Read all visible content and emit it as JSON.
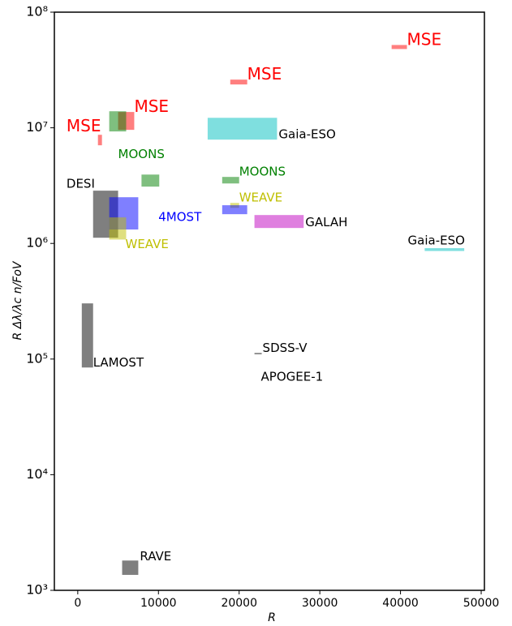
{
  "chart_data": {
    "type": "rectangles",
    "xlabel": "R",
    "ylabel": "R Δλ/λc n/FoV",
    "xlim": [
      -2900,
      50400
    ],
    "ylim": [
      1000,
      100000000
    ],
    "ylog": true,
    "xticks": [
      0,
      10000,
      20000,
      30000,
      40000,
      50000
    ],
    "yticks": [
      {
        "value": 1000,
        "label": "10³"
      },
      {
        "value": 10000,
        "label": "10⁴"
      },
      {
        "value": 100000,
        "label": "10⁵"
      },
      {
        "value": 1000000,
        "label": "10⁶"
      },
      {
        "value": 10000000,
        "label": "10⁷"
      },
      {
        "value": 100000000,
        "label": "10⁸"
      }
    ],
    "alpha": 0.5,
    "rects": [
      {
        "x": [
          38900,
          40800
        ],
        "y": [
          48000000,
          52000000
        ],
        "color": "#ff0000"
      },
      {
        "x": [
          18900,
          21000
        ],
        "y": [
          23700000,
          26100000
        ],
        "color": "#ff0000"
      },
      {
        "x": [
          5000,
          7000
        ],
        "y": [
          9600000,
          13700000
        ],
        "color": "#ff0000"
      },
      {
        "x": [
          2500,
          3000
        ],
        "y": [
          7060000,
          8700000
        ],
        "color": "#ff0000"
      },
      {
        "x": [
          3900,
          6000
        ],
        "y": [
          9300000,
          13900000
        ],
        "color": "#008000"
      },
      {
        "x": [
          7900,
          10100
        ],
        "y": [
          3100000,
          3940000
        ],
        "color": "#008000"
      },
      {
        "x": [
          17900,
          20000
        ],
        "y": [
          3300000,
          3760000
        ],
        "color": "#008000"
      },
      {
        "x": [
          16100,
          24700
        ],
        "y": [
          7900000,
          12200000
        ],
        "color": "#00bfbf"
      },
      {
        "x": [
          43000,
          47900
        ],
        "y": [
          860000,
          910000
        ],
        "color": "#00bfbf"
      },
      {
        "x": [
          1900,
          5000
        ],
        "y": [
          1120000,
          2860000
        ],
        "color": "#000000"
      },
      {
        "x": [
          3900,
          7500
        ],
        "y": [
          1320000,
          2510000
        ],
        "color": "#0000ff"
      },
      {
        "x": [
          3900,
          6000
        ],
        "y": [
          1080000,
          1680000
        ],
        "color": "#bfbf00"
      },
      {
        "x": [
          18900,
          20000
        ],
        "y": [
          2030000,
          2240000
        ],
        "color": "#bfbf00"
      },
      {
        "x": [
          17900,
          21000
        ],
        "y": [
          1790000,
          2140000
        ],
        "color": "#0000ff"
      },
      {
        "x": [
          21900,
          28000
        ],
        "y": [
          1360000,
          1760000
        ],
        "color": "#bf00bf"
      },
      {
        "x": [
          500,
          1900
        ],
        "y": [
          84500,
          303000
        ],
        "color": "#000000"
      },
      {
        "x": [
          21900,
          22800
        ],
        "y": [
          110000,
          113000
        ],
        "color": "#000000"
      },
      {
        "x": [
          5500,
          7500
        ],
        "y": [
          1360,
          1810
        ],
        "color": "#000000"
      }
    ],
    "annotations": [
      {
        "text": "MSE",
        "x": 40800,
        "y": 56700000,
        "color": "#ff0000",
        "fontsize": 20
      },
      {
        "text": "MSE",
        "x": 21000,
        "y": 28700000,
        "color": "#ff0000",
        "fontsize": 20
      },
      {
        "text": "MSE",
        "x": 7000,
        "y": 15000000,
        "color": "#ff0000",
        "fontsize": 20
      },
      {
        "text": "MSE",
        "x": -1400,
        "y": 10200000,
        "color": "#ff0000",
        "fontsize": 20
      },
      {
        "text": "MOONS",
        "x": 5000,
        "y": 5900000,
        "color": "#008000",
        "fontsize": 15
      },
      {
        "text": "MOONS",
        "x": 20000,
        "y": 4140000,
        "color": "#008000",
        "fontsize": 15
      },
      {
        "text": "Gaia-ESO",
        "x": 24900,
        "y": 8700000,
        "color": "#000000",
        "fontsize": 15
      },
      {
        "text": "Gaia-ESO",
        "x": 40900,
        "y": 1050000,
        "color": "#000000",
        "fontsize": 15
      },
      {
        "text": "DESI",
        "x": -1400,
        "y": 3250000,
        "color": "#000000",
        "fontsize": 15
      },
      {
        "text": "4MOST",
        "x": 10000,
        "y": 1680000,
        "color": "#0000ff",
        "fontsize": 15
      },
      {
        "text": "WEAVE",
        "x": 5900,
        "y": 980000,
        "color": "#bfbf00",
        "fontsize": 15
      },
      {
        "text": "WEAVE",
        "x": 20000,
        "y": 2470000,
        "color": "#bfbf00",
        "fontsize": 15
      },
      {
        "text": "GALAH",
        "x": 28200,
        "y": 1520000,
        "color": "#000000",
        "fontsize": 15
      },
      {
        "text": "LAMOST",
        "x": 1900,
        "y": 93000,
        "color": "#000000",
        "fontsize": 15
      },
      {
        "text": "SDSS-V",
        "x": 22900,
        "y": 124000,
        "color": "#000000",
        "fontsize": 15
      },
      {
        "text": "APOGEE-1",
        "x": 22700,
        "y": 70000,
        "color": "#000000",
        "fontsize": 15
      },
      {
        "text": "RAVE",
        "x": 7700,
        "y": 1960,
        "color": "#000000",
        "fontsize": 15
      }
    ]
  }
}
